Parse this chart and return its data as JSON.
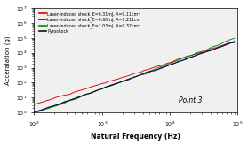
{
  "title": "",
  "xlabel": "Natural Frequency (Hz)",
  "ylabel": "Acceralation (g)",
  "point_label": "Point 3",
  "xlim": [
    100,
    100000
  ],
  "ylim": [
    1,
    10000000
  ],
  "legend": [
    {
      "label": "Laser-induced shock_E=0.31mJ, A=0.11cm²",
      "color": "#dd0000"
    },
    {
      "label": "Laser-induced shock_E=0.60mJ, A=0.211cm²",
      "color": "#0000cc"
    },
    {
      "label": "Laser-induced shock_E=1.03mJ, A=0.32cm²",
      "color": "#008800"
    },
    {
      "label": "Pyroshock",
      "color": "#111111"
    }
  ],
  "bg_color": "#f0f0f0",
  "curve_params": {
    "red": {
      "slope": 1.55,
      "intercept": -2.9,
      "noise": 0.1
    },
    "blue": {
      "slope": 1.6,
      "intercept": -3.2,
      "noise": 0.1
    },
    "green": {
      "slope": 1.62,
      "intercept": -3.3,
      "noise": 0.1
    },
    "black": {
      "slope": 1.6,
      "intercept": -3.2,
      "noise": 0.1
    }
  }
}
